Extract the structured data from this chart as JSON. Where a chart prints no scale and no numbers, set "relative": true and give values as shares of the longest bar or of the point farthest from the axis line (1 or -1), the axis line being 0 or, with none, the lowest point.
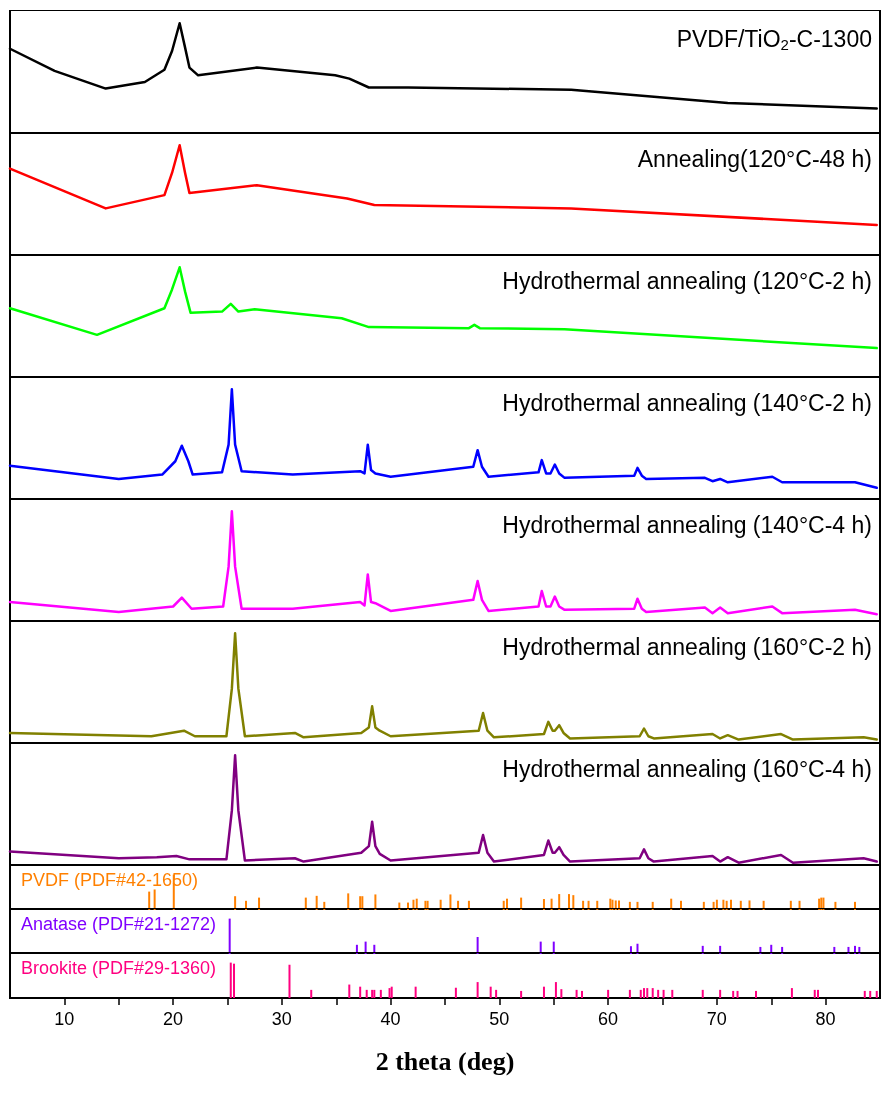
{
  "chart_data": [
    {
      "type": "line",
      "title": "PVDF/TiO$_{2}$-C-1300",
      "relative": true,
      "xlim": [
        5,
        85
      ],
      "tick_labels": false,
      "x": [
        5,
        9.1,
        13.8,
        17.4,
        19.2,
        19.9,
        20.6,
        21.1,
        21.5,
        22.3,
        27.7,
        34.9,
        36.2,
        38,
        41.6,
        56.6,
        71,
        84.7
      ],
      "series": [
        {
          "color": "#000000",
          "values": [
            0.77,
            0.57,
            0.41,
            0.47,
            0.58,
            0.75,
            1.0,
            0.78,
            0.6,
            0.53,
            0.6,
            0.53,
            0.5,
            0.42,
            0.42,
            0.4,
            0.28,
            0.23
          ]
        }
      ]
    },
    {
      "type": "line",
      "title": "Annealing(120°C-48 h)",
      "relative": true,
      "xlim": [
        5,
        85
      ],
      "tick_labels": false,
      "x": [
        5,
        13.8,
        19.2,
        19.9,
        20.6,
        21.1,
        21.5,
        27.7,
        36,
        38.5,
        56.6,
        84.7
      ],
      "series": [
        {
          "color": "#ff0000",
          "values": [
            0.79,
            0.43,
            0.55,
            0.75,
            1.0,
            0.75,
            0.57,
            0.64,
            0.52,
            0.46,
            0.43,
            0.28
          ]
        }
      ]
    },
    {
      "type": "line",
      "title": "Hydrothermal annealing (120°C-2 h)",
      "relative": true,
      "xlim": [
        5,
        85
      ],
      "tick_labels": false,
      "x": [
        5,
        13,
        19.2,
        19.9,
        20.6,
        21.1,
        21.6,
        24.5,
        25.3,
        26,
        27.5,
        35.5,
        38,
        47.2,
        47.7,
        48.2,
        56,
        84.7
      ],
      "series": [
        {
          "color": "#00ff00",
          "values": [
            0.63,
            0.39,
            0.63,
            0.8,
            1.0,
            0.78,
            0.59,
            0.6,
            0.67,
            0.6,
            0.62,
            0.54,
            0.46,
            0.45,
            0.48,
            0.45,
            0.44,
            0.27
          ]
        }
      ]
    },
    {
      "type": "line",
      "title": "Hydrothermal annealing (140°C-2 h)",
      "relative": true,
      "xlim": [
        5,
        85
      ],
      "tick_labels": false,
      "x": [
        5,
        15,
        19,
        20.2,
        20.8,
        21.4,
        21.8,
        24.5,
        25.1,
        25.4,
        25.7,
        26.3,
        31,
        37.2,
        37.6,
        37.9,
        38.2,
        38.6,
        40,
        47.6,
        48,
        48.4,
        49,
        53.6,
        53.9,
        54.3,
        54.7,
        55.1,
        55.5,
        56,
        62.4,
        62.7,
        63.1,
        63.5,
        68.9,
        69.6,
        70.3,
        71,
        75.1,
        76,
        82.7,
        84.7
      ],
      "series": [
        {
          "color": "#0000ff",
          "values": [
            0.31,
            0.19,
            0.23,
            0.35,
            0.49,
            0.35,
            0.23,
            0.25,
            0.5,
            1.0,
            0.5,
            0.26,
            0.23,
            0.26,
            0.24,
            0.5,
            0.27,
            0.24,
            0.21,
            0.3,
            0.45,
            0.3,
            0.21,
            0.25,
            0.36,
            0.24,
            0.24,
            0.32,
            0.24,
            0.2,
            0.22,
            0.29,
            0.22,
            0.19,
            0.2,
            0.17,
            0.19,
            0.16,
            0.21,
            0.16,
            0.16,
            0.11
          ]
        }
      ]
    },
    {
      "type": "line",
      "title": "Hydrothermal annealing (140°C-4 h)",
      "relative": true,
      "xlim": [
        5,
        85
      ],
      "tick_labels": false,
      "x": [
        5,
        15,
        20,
        20.8,
        21.7,
        24.6,
        25.1,
        25.4,
        25.7,
        26.3,
        31,
        37.2,
        37.6,
        37.9,
        38.2,
        38.6,
        40,
        47.6,
        48,
        48.4,
        49,
        53.6,
        53.9,
        54.3,
        54.7,
        55.1,
        55.5,
        56,
        62.4,
        62.7,
        63.1,
        63.5,
        68.9,
        69.6,
        70.3,
        71,
        75.1,
        76,
        82.7,
        84.7
      ],
      "series": [
        {
          "color": "#ff00ff",
          "values": [
            0.18,
            0.09,
            0.14,
            0.22,
            0.12,
            0.14,
            0.5,
            1.0,
            0.5,
            0.12,
            0.12,
            0.18,
            0.15,
            0.43,
            0.18,
            0.17,
            0.1,
            0.2,
            0.37,
            0.2,
            0.1,
            0.14,
            0.28,
            0.14,
            0.14,
            0.23,
            0.14,
            0.11,
            0.12,
            0.21,
            0.12,
            0.09,
            0.13,
            0.08,
            0.13,
            0.08,
            0.14,
            0.08,
            0.11,
            0.07
          ]
        }
      ]
    },
    {
      "type": "line",
      "title": "Hydrothermal annealing (160°C-2 h)",
      "relative": true,
      "xlim": [
        5,
        85
      ],
      "tick_labels": false,
      "x": [
        5,
        18,
        21,
        22,
        24.9,
        25.4,
        25.7,
        26,
        26.6,
        31.2,
        32,
        37.3,
        38,
        38.3,
        38.6,
        39,
        40,
        48.1,
        48.5,
        48.9,
        49.5,
        54.1,
        54.5,
        54.9,
        55.1,
        55.5,
        55.9,
        56.5,
        62.9,
        63.3,
        63.7,
        64.2,
        69.6,
        70.3,
        71,
        72,
        75.9,
        77,
        83.5,
        84.7
      ],
      "series": [
        {
          "color": "#808000",
          "values": [
            0.1,
            0.07,
            0.12,
            0.07,
            0.07,
            0.5,
            1.0,
            0.5,
            0.07,
            0.1,
            0.06,
            0.1,
            0.15,
            0.34,
            0.15,
            0.12,
            0.07,
            0.12,
            0.28,
            0.12,
            0.06,
            0.09,
            0.2,
            0.12,
            0.12,
            0.17,
            0.1,
            0.05,
            0.07,
            0.14,
            0.07,
            0.05,
            0.09,
            0.05,
            0.08,
            0.04,
            0.09,
            0.04,
            0.06,
            0.04
          ]
        }
      ]
    },
    {
      "type": "line",
      "title": "Hydrothermal annealing (160°C-4 h)",
      "relative": true,
      "xlim": [
        5,
        85
      ],
      "tick_labels": false,
      "x": [
        5,
        15,
        18.5,
        20.3,
        21.5,
        24.9,
        25.4,
        25.7,
        26,
        26.6,
        31.2,
        32,
        37.3,
        38,
        38.3,
        38.6,
        39,
        40,
        48.1,
        48.5,
        48.9,
        49.5,
        54.1,
        54.5,
        54.9,
        55.1,
        55.5,
        55.9,
        56.5,
        62.9,
        63.3,
        63.7,
        64.2,
        69.6,
        70.3,
        71,
        72,
        75.9,
        77,
        83.5,
        84.7
      ],
      "series": [
        {
          "color": "#800080",
          "values": [
            0.13,
            0.07,
            0.08,
            0.09,
            0.06,
            0.06,
            0.5,
            1.0,
            0.5,
            0.05,
            0.07,
            0.04,
            0.12,
            0.18,
            0.4,
            0.18,
            0.11,
            0.05,
            0.12,
            0.28,
            0.12,
            0.04,
            0.1,
            0.23,
            0.12,
            0.12,
            0.17,
            0.1,
            0.04,
            0.07,
            0.15,
            0.07,
            0.04,
            0.09,
            0.04,
            0.08,
            0.03,
            0.1,
            0.03,
            0.07,
            0.04
          ]
        }
      ]
    },
    {
      "type": "bar",
      "title": "PVDF (PDF#42-1650)",
      "relative": true,
      "xlim": [
        5,
        85
      ],
      "tick_labels": false,
      "x": [
        17.8,
        18.3,
        20.06,
        25.7,
        26.7,
        27.9,
        32.2,
        33.2,
        33.9,
        36.1,
        37.2,
        37.4,
        38.6,
        40.8,
        41.6,
        42.1,
        42.4,
        43.2,
        43.4,
        44.6,
        45.5,
        46.2,
        47.2,
        50.4,
        50.7,
        52.0,
        54.1,
        54.8,
        55.5,
        56.4,
        56.8,
        57.7,
        58.2,
        59.0,
        60.2,
        60.4,
        60.7,
        61.0,
        62.0,
        62.7,
        64.1,
        65.8,
        66.7,
        68.8,
        69.7,
        70.0,
        70.6,
        70.9,
        71.3,
        72.2,
        73.0,
        74.3,
        76.8,
        77.6,
        79.4,
        79.6,
        79.8,
        80.9,
        82.7
      ],
      "series": [
        {
          "color": "#ff8000",
          "values": [
            0.52,
            0.58,
            1.0,
            0.39,
            0.26,
            0.35,
            0.35,
            0.4,
            0.23,
            0.47,
            0.39,
            0.39,
            0.44,
            0.21,
            0.21,
            0.29,
            0.32,
            0.26,
            0.26,
            0.29,
            0.44,
            0.26,
            0.26,
            0.26,
            0.32,
            0.35,
            0.31,
            0.32,
            0.45,
            0.45,
            0.42,
            0.26,
            0.26,
            0.26,
            0.32,
            0.29,
            0.27,
            0.27,
            0.23,
            0.23,
            0.23,
            0.32,
            0.26,
            0.23,
            0.23,
            0.29,
            0.29,
            0.26,
            0.29,
            0.26,
            0.27,
            0.26,
            0.26,
            0.26,
            0.32,
            0.35,
            0.35,
            0.23,
            0.23
          ]
        }
      ]
    },
    {
      "type": "bar",
      "title": "Anatase (PDF#21-1272)",
      "relative": true,
      "xlim": [
        5,
        85
      ],
      "tick_labels": false,
      "x": [
        25.2,
        36.9,
        37.7,
        38.5,
        48.0,
        53.8,
        55.0,
        62.1,
        62.7,
        68.7,
        70.3,
        74.0,
        75.0,
        76.0,
        80.8,
        82.1,
        82.7,
        83.1
      ],
      "series": [
        {
          "color": "#8000ff",
          "values": [
            1.0,
            0.26,
            0.35,
            0.26,
            0.48,
            0.35,
            0.35,
            0.22,
            0.29,
            0.23,
            0.23,
            0.2,
            0.26,
            0.2,
            0.2,
            0.2,
            0.23,
            0.2
          ]
        }
      ]
    },
    {
      "type": "bar",
      "title": "Brookite (PDF#29-1360)",
      "relative": true,
      "xlim": [
        5,
        85
      ],
      "tick_labels": "x",
      "xlabel": "2 theta (deg)",
      "xticks": [
        10,
        {
          "value": 15,
          "label": null
        },
        20,
        {
          "value": 25,
          "label": null
        },
        30,
        {
          "value": 35,
          "label": null
        },
        40,
        {
          "value": 45,
          "label": null
        },
        50,
        {
          "value": 55,
          "label": null
        },
        60,
        {
          "value": 65,
          "label": null
        },
        70,
        {
          "value": 75,
          "label": null
        },
        80
      ],
      "x": [
        25.3,
        25.6,
        30.7,
        32.7,
        36.2,
        37.2,
        37.8,
        38.3,
        38.5,
        39.1,
        39.9,
        40.1,
        42.3,
        46.0,
        48.0,
        49.2,
        49.7,
        52.0,
        54.1,
        55.2,
        55.7,
        57.1,
        57.6,
        60.0,
        62.0,
        63.0,
        63.3,
        63.6,
        64.1,
        64.6,
        65.1,
        65.9,
        68.7,
        70.3,
        71.5,
        71.9,
        73.6,
        76.9,
        79.0,
        79.3,
        83.6,
        84.1,
        84.7
      ],
      "series": [
        {
          "color": "#ff0080",
          "values": [
            1.0,
            0.97,
            0.94,
            0.23,
            0.38,
            0.32,
            0.23,
            0.23,
            0.23,
            0.23,
            0.28,
            0.32,
            0.32,
            0.29,
            0.45,
            0.32,
            0.23,
            0.2,
            0.32,
            0.45,
            0.25,
            0.23,
            0.2,
            0.23,
            0.23,
            0.23,
            0.28,
            0.28,
            0.28,
            0.23,
            0.23,
            0.23,
            0.23,
            0.23,
            0.2,
            0.2,
            0.2,
            0.28,
            0.23,
            0.23,
            0.2,
            0.2,
            0.2
          ]
        }
      ]
    }
  ]
}
